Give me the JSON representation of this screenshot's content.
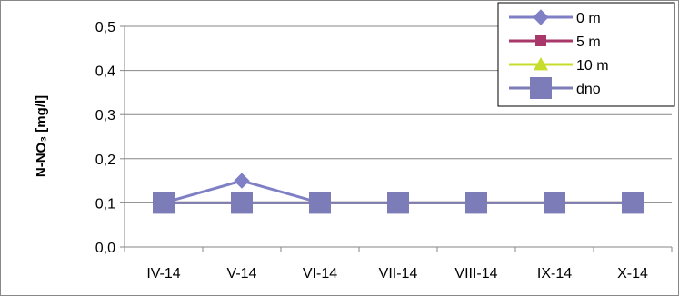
{
  "chart_data": {
    "type": "line",
    "title": "",
    "xlabel": "",
    "ylabel": "N-NO₃ [mg/l]",
    "categories": [
      "IV-14",
      "V-14",
      "VI-14",
      "VII-14",
      "VIII-14",
      "IX-14",
      "X-14"
    ],
    "ylim": [
      0,
      0.5
    ],
    "yticks": [
      "0,0",
      "0,1",
      "0,2",
      "0,3",
      "0,4",
      "0,5"
    ],
    "grid": "horizontal",
    "legend_position": "top-right",
    "series": [
      {
        "name": "0 m",
        "values": [
          0.1,
          0.15,
          0.1,
          0.1,
          0.1,
          0.1,
          0.1
        ],
        "color": "#7F7FC6",
        "marker": "diamond"
      },
      {
        "name": "5 m",
        "values": [
          0.1,
          0.1,
          0.1,
          0.1,
          0.1,
          0.1,
          0.1
        ],
        "color": "#A8386A",
        "marker": "square"
      },
      {
        "name": "10 m",
        "values": [
          0.1,
          0.1,
          0.1,
          0.1,
          0.1,
          0.1,
          0.1
        ],
        "color": "#C8DC2C",
        "marker": "triangle"
      },
      {
        "name": "dno",
        "values": [
          0.1,
          0.1,
          0.1,
          0.1,
          0.1,
          0.1,
          0.1
        ],
        "color": "#7C7CB8",
        "marker": "bigsquare"
      }
    ]
  }
}
